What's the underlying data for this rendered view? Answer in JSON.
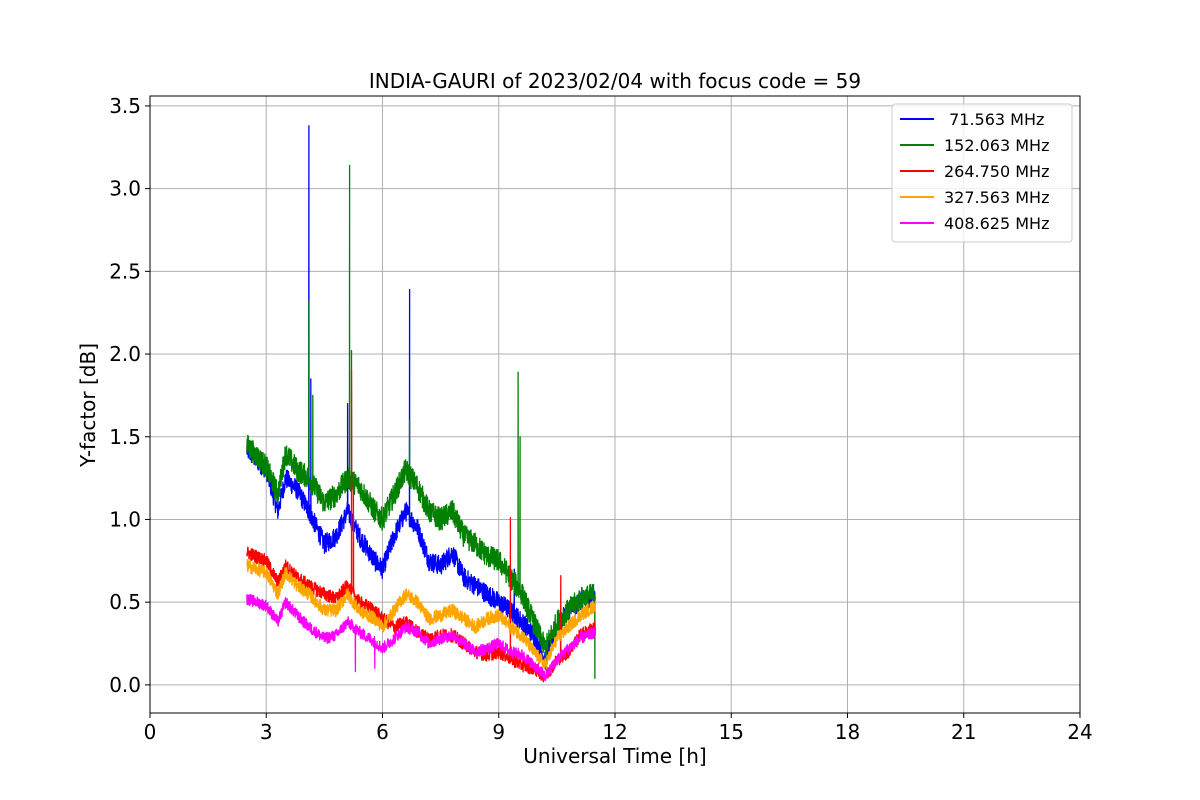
{
  "chart_data": {
    "type": "line",
    "title": "INDIA-GAURI of 2023/02/04 with focus code = 59",
    "xlabel": "Universal Time [h]",
    "ylabel": "Y-factor [dB]",
    "xlim": [
      0,
      24
    ],
    "ylim": [
      -0.17,
      3.56
    ],
    "xticks": [
      0,
      3,
      6,
      9,
      12,
      15,
      18,
      21,
      24
    ],
    "xtick_labels": [
      "0",
      "3",
      "6",
      "9",
      "12",
      "15",
      "18",
      "21",
      "24"
    ],
    "yticks": [
      0.0,
      0.5,
      1.0,
      1.5,
      2.0,
      2.5,
      3.0,
      3.5
    ],
    "ytick_labels": [
      "0.0",
      "0.5",
      "1.0",
      "1.5",
      "2.0",
      "2.5",
      "3.0",
      "3.5"
    ],
    "grid": true,
    "legend_position": "top-right",
    "series": [
      {
        "name": " 71.563 MHz",
        "color": "#0000ff",
        "noise": 0.06,
        "x": [
          2.5,
          3.0,
          3.3,
          3.5,
          3.8,
          4.1,
          4.5,
          4.8,
          5.1,
          5.4,
          5.8,
          6.0,
          6.3,
          6.6,
          6.9,
          7.2,
          7.5,
          7.8,
          8.1,
          8.4,
          8.7,
          9.0,
          9.3,
          9.6,
          9.9,
          10.2,
          10.5,
          10.8,
          11.1,
          11.5
        ],
        "y": [
          1.42,
          1.3,
          1.05,
          1.25,
          1.18,
          1.05,
          0.85,
          0.9,
          1.05,
          0.9,
          0.75,
          0.7,
          0.9,
          1.05,
          0.95,
          0.75,
          0.72,
          0.8,
          0.65,
          0.6,
          0.55,
          0.5,
          0.45,
          0.38,
          0.3,
          0.15,
          0.35,
          0.45,
          0.5,
          0.55
        ],
        "spikes": [
          [
            4.1,
            3.38
          ],
          [
            4.15,
            1.85
          ],
          [
            5.1,
            1.7
          ],
          [
            6.7,
            2.39
          ],
          [
            9.4,
            0.7
          ]
        ]
      },
      {
        "name": "152.063 MHz",
        "color": "#008000",
        "noise": 0.07,
        "x": [
          2.5,
          3.0,
          3.3,
          3.5,
          3.8,
          4.1,
          4.5,
          4.8,
          5.1,
          5.4,
          5.8,
          6.0,
          6.3,
          6.6,
          6.9,
          7.2,
          7.5,
          7.8,
          8.1,
          8.4,
          8.7,
          9.0,
          9.3,
          9.6,
          9.9,
          10.2,
          10.5,
          10.8,
          11.1,
          11.5
        ],
        "y": [
          1.45,
          1.32,
          1.15,
          1.4,
          1.3,
          1.25,
          1.1,
          1.15,
          1.25,
          1.2,
          1.05,
          1.0,
          1.15,
          1.3,
          1.2,
          1.05,
          1.0,
          1.05,
          0.9,
          0.85,
          0.78,
          0.75,
          0.65,
          0.55,
          0.38,
          0.22,
          0.38,
          0.45,
          0.52,
          0.55
        ],
        "spikes": [
          [
            4.1,
            2.32
          ],
          [
            4.2,
            1.75
          ],
          [
            5.15,
            3.14
          ],
          [
            5.2,
            2.02
          ],
          [
            6.7,
            1.6
          ],
          [
            9.5,
            1.89
          ],
          [
            9.55,
            1.5
          ],
          [
            11.48,
            0.04
          ]
        ]
      },
      {
        "name": "264.750 MHz",
        "color": "#ff0000",
        "noise": 0.04,
        "x": [
          2.5,
          3.0,
          3.3,
          3.5,
          3.8,
          4.1,
          4.5,
          4.8,
          5.1,
          5.4,
          5.8,
          6.0,
          6.3,
          6.6,
          6.9,
          7.2,
          7.5,
          7.8,
          8.1,
          8.4,
          8.7,
          9.0,
          9.3,
          9.6,
          9.9,
          10.2,
          10.5,
          10.8,
          11.1,
          11.5
        ],
        "y": [
          0.8,
          0.75,
          0.62,
          0.72,
          0.65,
          0.6,
          0.55,
          0.52,
          0.6,
          0.5,
          0.45,
          0.4,
          0.35,
          0.38,
          0.32,
          0.28,
          0.3,
          0.3,
          0.25,
          0.2,
          0.18,
          0.2,
          0.16,
          0.12,
          0.1,
          0.05,
          0.15,
          0.2,
          0.3,
          0.35
        ],
        "spikes": [
          [
            5.2,
            1.9
          ],
          [
            5.25,
            1.2
          ],
          [
            9.3,
            1.01
          ],
          [
            10.6,
            0.66
          ]
        ]
      },
      {
        "name": "327.563 MHz",
        "color": "#ffa500",
        "noise": 0.04,
        "x": [
          2.5,
          3.0,
          3.3,
          3.5,
          3.8,
          4.1,
          4.5,
          4.8,
          5.1,
          5.4,
          5.8,
          6.0,
          6.3,
          6.6,
          6.9,
          7.2,
          7.5,
          7.8,
          8.1,
          8.4,
          8.7,
          9.0,
          9.3,
          9.6,
          9.9,
          10.2,
          10.5,
          10.8,
          11.1,
          11.5
        ],
        "y": [
          0.72,
          0.68,
          0.55,
          0.68,
          0.6,
          0.55,
          0.45,
          0.45,
          0.55,
          0.45,
          0.4,
          0.35,
          0.45,
          0.55,
          0.5,
          0.4,
          0.42,
          0.45,
          0.4,
          0.35,
          0.4,
          0.42,
          0.35,
          0.3,
          0.2,
          0.12,
          0.28,
          0.35,
          0.42,
          0.48
        ],
        "spikes": []
      },
      {
        "name": "408.625 MHz",
        "color": "#ff00ff",
        "noise": 0.035,
        "x": [
          2.5,
          3.0,
          3.3,
          3.5,
          3.8,
          4.1,
          4.5,
          4.8,
          5.1,
          5.4,
          5.8,
          6.0,
          6.3,
          6.6,
          6.9,
          7.2,
          7.5,
          7.8,
          8.1,
          8.4,
          8.7,
          9.0,
          9.3,
          9.6,
          9.9,
          10.2,
          10.5,
          10.8,
          11.1,
          11.5
        ],
        "y": [
          0.52,
          0.48,
          0.38,
          0.5,
          0.42,
          0.35,
          0.28,
          0.3,
          0.38,
          0.32,
          0.26,
          0.22,
          0.28,
          0.35,
          0.32,
          0.25,
          0.28,
          0.3,
          0.25,
          0.2,
          0.22,
          0.25,
          0.2,
          0.18,
          0.12,
          0.05,
          0.15,
          0.22,
          0.28,
          0.32
        ],
        "spikes": [
          [
            5.3,
            0.08
          ],
          [
            5.8,
            0.1
          ]
        ]
      }
    ]
  }
}
